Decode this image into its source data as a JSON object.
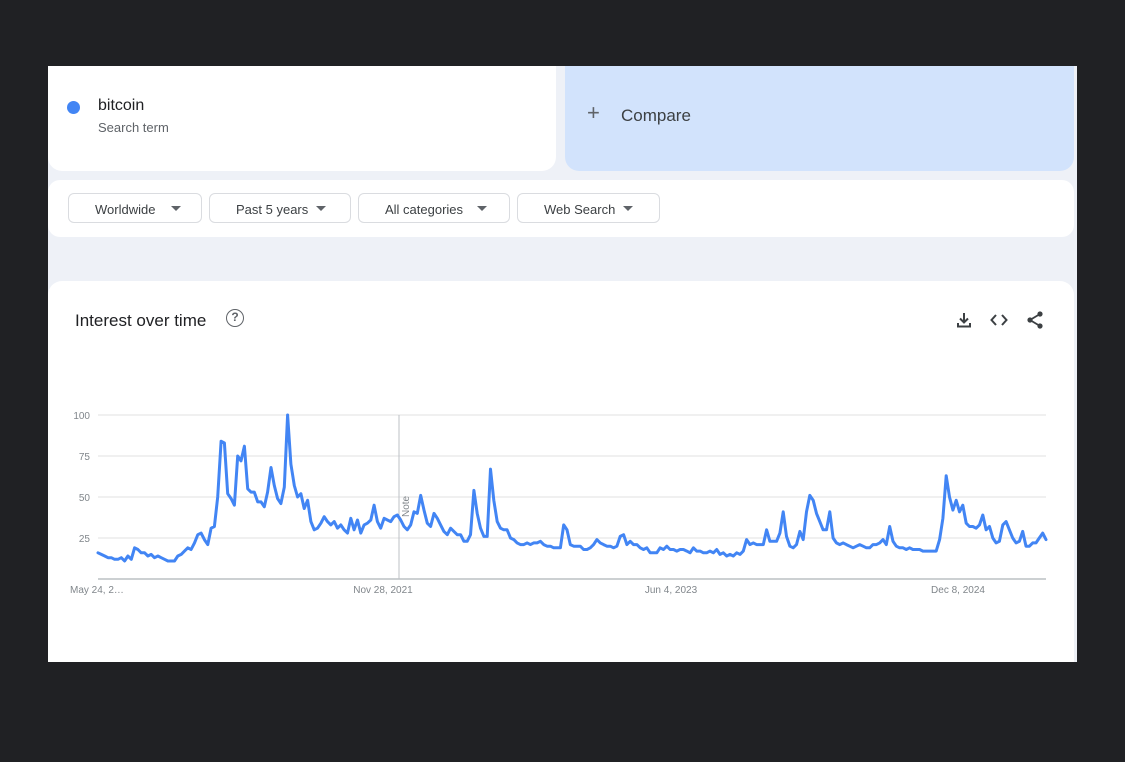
{
  "term": {
    "name": "bitcoin",
    "subtitle": "Search term",
    "color": "#4285f4"
  },
  "compare": {
    "label": "Compare",
    "icon": "plus-icon"
  },
  "filters": [
    {
      "label": "Worldwide"
    },
    {
      "label": "Past 5 years"
    },
    {
      "label": "All categories"
    },
    {
      "label": "Web Search"
    }
  ],
  "chart": {
    "title": "Interest over time",
    "help_icon": "help-icon",
    "toolbar_icons": [
      "download-icon",
      "embed-icon",
      "share-icon"
    ],
    "note_label": "Note"
  },
  "chart_data": {
    "type": "line",
    "series": [
      {
        "name": "bitcoin",
        "color": "#4285f4",
        "values": [
          16,
          15,
          14,
          13,
          13,
          12,
          12,
          13,
          11,
          14,
          12,
          19,
          18,
          16,
          16,
          14,
          15,
          13,
          14,
          13,
          12,
          11,
          11,
          11,
          14,
          15,
          17,
          19,
          18,
          22,
          27,
          28,
          24,
          21,
          31,
          32,
          50,
          84,
          83,
          52,
          49,
          45,
          75,
          72,
          81,
          55,
          53,
          53,
          47,
          47,
          44,
          53,
          68,
          57,
          49,
          46,
          56,
          100,
          70,
          57,
          50,
          52,
          43,
          48,
          35,
          30,
          31,
          34,
          38,
          35,
          33,
          35,
          31,
          33,
          30,
          28,
          37,
          30,
          36,
          28,
          33,
          34,
          36,
          45,
          35,
          31,
          37,
          36,
          35,
          38,
          39,
          36,
          32,
          30,
          33,
          41,
          40,
          51,
          42,
          34,
          32,
          40,
          37,
          33,
          29,
          27,
          31,
          29,
          27,
          27,
          23,
          23,
          27,
          54,
          40,
          31,
          26,
          26,
          67,
          48,
          35,
          31,
          30,
          30,
          25,
          24,
          22,
          21,
          21,
          22,
          21,
          22,
          22,
          23,
          21,
          20,
          20,
          19,
          19,
          19,
          33,
          30,
          21,
          20,
          20,
          20,
          18,
          18,
          19,
          21,
          24,
          22,
          21,
          20,
          20,
          19,
          20,
          26,
          27,
          21,
          23,
          21,
          21,
          19,
          18,
          19,
          16,
          16,
          16,
          19,
          18,
          20,
          18,
          18,
          17,
          18,
          18,
          17,
          16,
          19,
          17,
          17,
          16,
          16,
          17,
          16,
          18,
          15,
          16,
          14,
          15,
          14,
          16,
          15,
          17,
          24,
          21,
          22,
          21,
          21,
          21,
          30,
          23,
          23,
          23,
          28,
          41,
          26,
          20,
          19,
          21,
          29,
          24,
          41,
          51,
          48,
          40,
          35,
          30,
          30,
          41,
          25,
          22,
          21,
          22,
          21,
          20,
          19,
          20,
          21,
          20,
          19,
          19,
          21,
          21,
          22,
          24,
          21,
          32,
          23,
          20,
          19,
          19,
          18,
          19,
          18,
          18,
          18,
          17,
          17,
          17,
          17,
          17,
          24,
          37,
          63,
          50,
          42,
          48,
          41,
          45,
          34,
          32,
          32,
          31,
          33,
          39,
          30,
          32,
          25,
          22,
          23,
          33,
          35,
          30,
          25,
          22,
          23,
          29,
          20,
          20,
          22,
          22,
          25,
          28,
          24
        ]
      }
    ],
    "xlabels": [
      "May 24, 2…",
      "Nov 28, 2021",
      "Jun 4, 2023",
      "Dec 8, 2024"
    ],
    "yticks": [
      25,
      50,
      75,
      100
    ],
    "ylim": [
      0,
      100
    ],
    "grid": true
  }
}
